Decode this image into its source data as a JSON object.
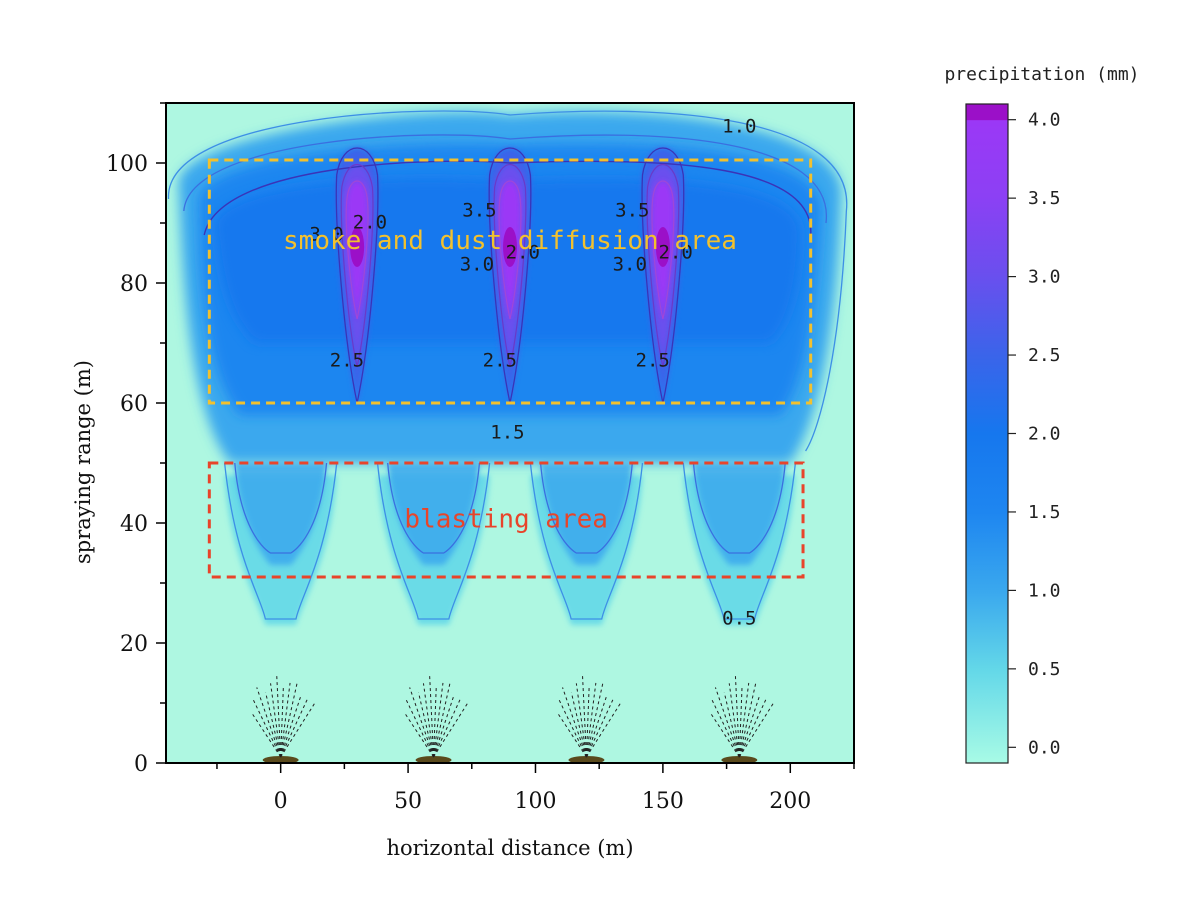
{
  "chart_data": {
    "type": "contour",
    "xlabel": "horizontal distance (m)",
    "ylabel": "spraying range (m)",
    "xlim": [
      -45,
      225
    ],
    "ylim": [
      0,
      110
    ],
    "xticks": [
      0,
      50,
      100,
      150,
      200
    ],
    "yticks": [
      0,
      20,
      40,
      60,
      80,
      100
    ],
    "colorbar": {
      "title": "precipitation (mm)",
      "range": [
        -0.1,
        4.1
      ],
      "ticks": [
        "0.0",
        "0.5",
        "1.0",
        "1.5",
        "2.0",
        "2.5",
        "3.0",
        "3.5",
        "4.0"
      ],
      "colors": [
        "#a8fbe6",
        "#64d8e8",
        "#3aa8ee",
        "#1e86f0",
        "#1677ee",
        "#3b64ea",
        "#6a4fee",
        "#9b38f6",
        "#9b10c8"
      ]
    },
    "background_color": "#aef7e1",
    "sprinklers_x": [
      0,
      60,
      120,
      180
    ],
    "contour_peaks": [
      {
        "x": 30,
        "y": 86,
        "value": 4.0
      },
      {
        "x": 90,
        "y": 86,
        "value": 4.0
      },
      {
        "x": 150,
        "y": 86,
        "value": 4.0
      }
    ],
    "contour_labels": [
      {
        "text": "1.0",
        "x": 180,
        "y": 106
      },
      {
        "text": "2.0",
        "x": 35,
        "y": 90
      },
      {
        "text": "3.0",
        "x": 18,
        "y": 88
      },
      {
        "text": "3.5",
        "x": 78,
        "y": 92
      },
      {
        "text": "2.0",
        "x": 95,
        "y": 85
      },
      {
        "text": "3.0",
        "x": 77,
        "y": 83
      },
      {
        "text": "3.5",
        "x": 138,
        "y": 92
      },
      {
        "text": "2.0",
        "x": 155,
        "y": 85
      },
      {
        "text": "3.0",
        "x": 137,
        "y": 83
      },
      {
        "text": "2.5",
        "x": 26,
        "y": 67
      },
      {
        "text": "2.5",
        "x": 86,
        "y": 67
      },
      {
        "text": "2.5",
        "x": 146,
        "y": 67
      },
      {
        "text": "1.5",
        "x": 89,
        "y": 55
      },
      {
        "text": "0.5",
        "x": 180,
        "y": 24
      }
    ],
    "regions": [
      {
        "label": "smoke and dust diffusion area",
        "x_range": [
          -28,
          208
        ],
        "y_range": [
          60,
          100.5
        ],
        "color": "#f2c12e"
      },
      {
        "label": "blasting area",
        "x_range": [
          -28,
          205
        ],
        "y_range": [
          31,
          50
        ],
        "color": "#e8442a"
      }
    ]
  }
}
